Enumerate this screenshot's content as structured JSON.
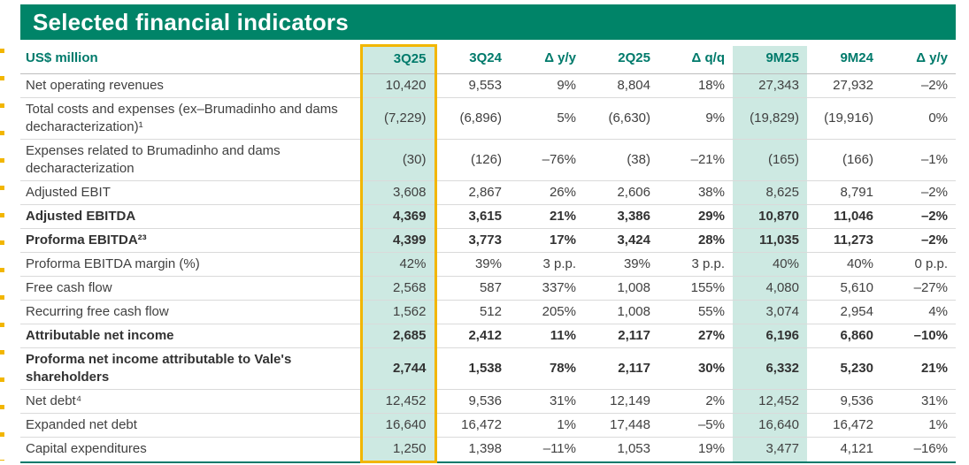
{
  "title": "Selected financial indicators",
  "table": {
    "unit_label": "US$ million",
    "columns": [
      "3Q25",
      "3Q24",
      "Δ y/y",
      "2Q25",
      "Δ q/q",
      "9M25",
      "9M24",
      "Δ y/y"
    ],
    "highlight_column": "3Q25",
    "tinted_columns": [
      "3Q25",
      "9M25"
    ],
    "rows": [
      {
        "label": "Net operating revenues",
        "bold": false,
        "values": [
          "10,420",
          "9,553",
          "9%",
          "8,804",
          "18%",
          "27,343",
          "27,932",
          "–2%"
        ]
      },
      {
        "label": "Total costs and expenses (ex–Brumadinho and dams decharacterization)¹",
        "bold": false,
        "values": [
          "(7,229)",
          "(6,896)",
          "5%",
          "(6,630)",
          "9%",
          "(19,829)",
          "(19,916)",
          "0%"
        ]
      },
      {
        "label": "Expenses related to Brumadinho and dams decharacterization",
        "bold": false,
        "values": [
          "(30)",
          "(126)",
          "–76%",
          "(38)",
          "–21%",
          "(165)",
          "(166)",
          "–1%"
        ]
      },
      {
        "label": "Adjusted EBIT",
        "bold": false,
        "values": [
          "3,608",
          "2,867",
          "26%",
          "2,606",
          "38%",
          "8,625",
          "8,791",
          "–2%"
        ]
      },
      {
        "label": "Adjusted EBITDA",
        "bold": true,
        "values": [
          "4,369",
          "3,615",
          "21%",
          "3,386",
          "29%",
          "10,870",
          "11,046",
          "–2%"
        ]
      },
      {
        "label": "Proforma EBITDA²³",
        "bold": true,
        "values": [
          "4,399",
          "3,773",
          "17%",
          "3,424",
          "28%",
          "11,035",
          "11,273",
          "–2%"
        ]
      },
      {
        "label": "Proforma EBITDA margin (%)",
        "bold": false,
        "values": [
          "42%",
          "39%",
          "3 p.p.",
          "39%",
          "3 p.p.",
          "40%",
          "40%",
          "0 p.p."
        ]
      },
      {
        "label": "Free cash flow",
        "bold": false,
        "values": [
          "2,568",
          "587",
          "337%",
          "1,008",
          "155%",
          "4,080",
          "5,610",
          "–27%"
        ]
      },
      {
        "label": "Recurring free cash flow",
        "bold": false,
        "values": [
          "1,562",
          "512",
          "205%",
          "1,008",
          "55%",
          "3,074",
          "2,954",
          "4%"
        ]
      },
      {
        "label": "Attributable net income",
        "bold": true,
        "values": [
          "2,685",
          "2,412",
          "11%",
          "2,117",
          "27%",
          "6,196",
          "6,860",
          "–10%"
        ]
      },
      {
        "label": "Proforma net income attributable to Vale's shareholders",
        "bold": true,
        "values": [
          "2,744",
          "1,538",
          "78%",
          "2,117",
          "30%",
          "6,332",
          "5,230",
          "21%"
        ]
      },
      {
        "label": "Net debt⁴",
        "bold": false,
        "values": [
          "12,452",
          "9,536",
          "31%",
          "12,149",
          "2%",
          "12,452",
          "9,536",
          "31%"
        ]
      },
      {
        "label": "Expanded net debt",
        "bold": false,
        "values": [
          "16,640",
          "16,472",
          "1%",
          "17,448",
          "–5%",
          "16,640",
          "16,472",
          "1%"
        ]
      },
      {
        "label": "Capital expenditures",
        "bold": false,
        "values": [
          "1,250",
          "1,398",
          "–11%",
          "1,053",
          "19%",
          "3,477",
          "4,121",
          "–16%"
        ]
      }
    ]
  },
  "colors": {
    "brand_green": "#008468",
    "header_text_teal": "#007A6B",
    "column_tint_mint": "#CDE9E2",
    "highlight_border_yellow": "#F2B600",
    "body_text": "#404040",
    "row_divider": "#DADADA"
  }
}
